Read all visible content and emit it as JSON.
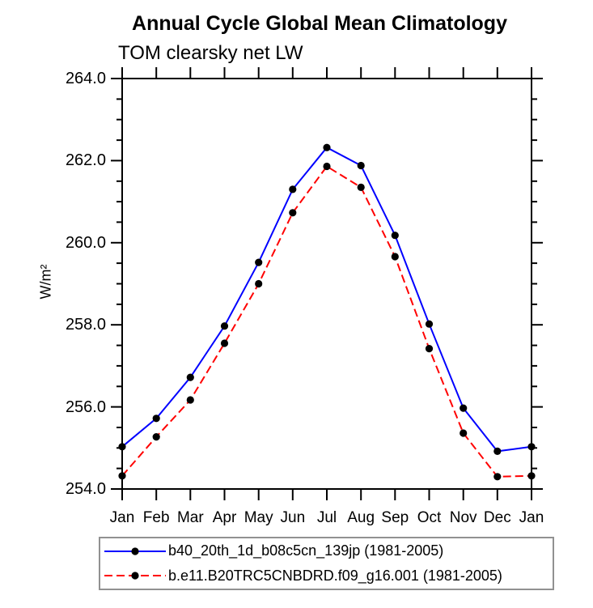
{
  "chart_data": {
    "type": "line",
    "title": "Annual Cycle Global Mean Climatology",
    "subtitle": "TOM clearsky net LW",
    "ylabel": "W/m²",
    "xlabel": "",
    "categories": [
      "Jan",
      "Feb",
      "Mar",
      "Apr",
      "May",
      "Jun",
      "Jul",
      "Aug",
      "Sep",
      "Oct",
      "Nov",
      "Dec",
      "Jan"
    ],
    "ylim": [
      254.0,
      264.0
    ],
    "ytick_major_values": [
      254,
      256,
      258,
      260,
      262,
      264
    ],
    "ytick_labels": [
      "254.0",
      "256.0",
      "258.0",
      "260.0",
      "262.0",
      "264.0"
    ],
    "ytick_minor_step": 0.5,
    "grid": false,
    "legend_position": "bottom",
    "axis_color": "#000000",
    "legend_border_color": "#919191",
    "series": [
      {
        "name": "b40_20th_1d_b08c5cn_139jp (1981-2005)",
        "color": "#0000ff",
        "line_style": "solid",
        "marker": "filled-circle",
        "marker_color": "#000000",
        "values": [
          255.03,
          255.72,
          256.72,
          257.97,
          259.52,
          261.3,
          262.32,
          261.88,
          260.18,
          258.02,
          255.97,
          254.92,
          255.03
        ]
      },
      {
        "name": "b.e11.B20TRC5CNBDRD.f09_g16.001 (1981-2005)",
        "color": "#ff0000",
        "line_style": "dashed",
        "marker": "filled-circle",
        "marker_color": "#000000",
        "values": [
          254.32,
          255.27,
          256.17,
          257.55,
          259.0,
          260.73,
          261.86,
          261.35,
          259.66,
          257.42,
          255.36,
          254.3,
          254.32
        ]
      }
    ]
  }
}
